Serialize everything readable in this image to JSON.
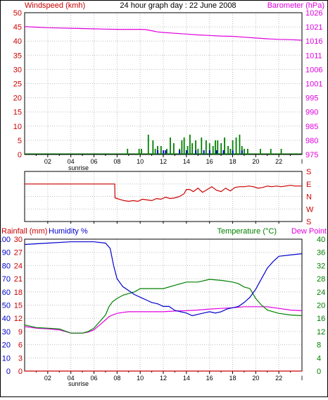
{
  "colors": {
    "red": "#cc0000",
    "magenta": "#e000e0",
    "green": "#008000",
    "blue": "#0000cc",
    "grid": "#c0c0c0",
    "axis": "#000000",
    "wind": "#0000cc",
    "gust": "#008000",
    "rain": "#cc0000"
  },
  "chart_data": [
    {
      "id": "wind-baro",
      "type": "bar+line",
      "title": "24 hour graph day : 22 June 2008",
      "left_label": "Windspeed (kmh)",
      "right_label": "Barometer (hPa)",
      "left_ticks": [
        "0",
        "5",
        "10",
        "15",
        "20",
        "25",
        "30",
        "35",
        "40",
        "45",
        "50"
      ],
      "right_ticks": [
        "975",
        "980",
        "985",
        "990",
        "995",
        "1001",
        "1006",
        "1011",
        "1016",
        "1021",
        "1026"
      ],
      "ylim_left": [
        0,
        50
      ],
      "ylim_right": [
        975,
        1026
      ],
      "x_ticks": [
        "02",
        "04",
        "06",
        "08",
        "10",
        "12",
        "14",
        "16",
        "18",
        "20",
        "22"
      ],
      "x_ticks_end_label": "I",
      "sunrise_label": "sunrise",
      "xlim_hours": [
        0,
        24
      ],
      "series": [
        {
          "name": "Barometer",
          "axis": "right",
          "x": [
            0,
            1,
            2,
            3,
            4,
            5,
            6,
            7,
            8,
            9,
            10,
            10.5,
            11,
            11.5,
            12,
            13,
            14,
            15,
            16,
            17,
            18,
            19,
            20,
            21,
            22,
            23,
            24
          ],
          "y": [
            1021,
            1020.8,
            1020.6,
            1020.5,
            1020.4,
            1020.3,
            1020.2,
            1020.1,
            1020,
            1020,
            1020,
            1019.9,
            1019.5,
            1019.1,
            1018.9,
            1018.6,
            1018.3,
            1018,
            1017.8,
            1017.6,
            1017.5,
            1017.2,
            1016.9,
            1016.6,
            1016.4,
            1016.3,
            1016.1
          ]
        },
        {
          "name": "Wind",
          "axis": "left",
          "x": [
            11.5,
            12,
            12.2,
            13.4,
            14,
            14.8,
            15.5,
            16,
            16.6,
            17.2,
            18,
            18.8
          ],
          "y": [
            1,
            1,
            1,
            1,
            1,
            1,
            1,
            1,
            1,
            1,
            1,
            1
          ]
        },
        {
          "name": "Gust",
          "axis": "left",
          "x": [
            8.9,
            9.9,
            10.1,
            10.7,
            11.1,
            11.3,
            11.5,
            11.8,
            12.3,
            12.6,
            12.9,
            13.4,
            13.6,
            13.8,
            14.1,
            14.3,
            14.5,
            14.8,
            15.0,
            15.3,
            15.7,
            16.0,
            16.3,
            16.5,
            16.7,
            17.0,
            17.3,
            17.6,
            17.8,
            18.0,
            18.3,
            18.6,
            18.8,
            19.0,
            19.3,
            20.4,
            21.3,
            22.2
          ],
          "y": [
            2,
            2,
            2,
            7,
            5,
            2,
            3,
            3,
            2,
            6,
            4,
            2,
            5,
            6,
            3,
            7,
            4,
            5,
            2,
            6,
            5,
            4,
            3,
            5,
            5,
            4,
            6,
            3,
            2,
            5,
            6,
            7,
            3,
            2,
            2,
            2,
            2,
            2
          ]
        }
      ]
    },
    {
      "id": "wind-dir",
      "type": "line",
      "right_labels": [
        "S",
        "E",
        "N",
        "W",
        "S"
      ],
      "ylim": [
        0,
        360
      ],
      "series": [
        {
          "name": "Wind direction",
          "x": [
            0,
            7.8,
            7.82,
            8.2,
            8.6,
            9.0,
            9.4,
            9.8,
            10.2,
            10.6,
            11.0,
            11.4,
            11.8,
            12.2,
            12.6,
            13.0,
            13.4,
            13.8,
            14.0,
            14.3,
            14.6,
            15.0,
            15.4,
            15.8,
            16.2,
            16.6,
            17.0,
            17.4,
            17.8,
            18.2,
            18.6,
            19.0,
            19.4,
            19.8,
            20.2,
            20.6,
            21.0,
            21.4,
            21.8,
            22.2,
            22.6,
            23.0,
            23.4,
            24
          ],
          "y": [
            270,
            270,
            170,
            160,
            150,
            145,
            150,
            145,
            160,
            155,
            150,
            165,
            160,
            175,
            165,
            170,
            180,
            200,
            230,
            230,
            215,
            240,
            210,
            230,
            250,
            225,
            215,
            240,
            220,
            245,
            250,
            250,
            255,
            250,
            240,
            245,
            255,
            250,
            255,
            250,
            255,
            260,
            255,
            255
          ]
        }
      ]
    },
    {
      "id": "temp-hum",
      "type": "line",
      "left_label_1": "Rainfall (mm)",
      "left_label_2": "Humidity %",
      "right_label_1": "Temperature (°C)",
      "right_label_2": "Dew Point",
      "humidity_ticks": [
        "0",
        "10",
        "20",
        "30",
        "40",
        "50",
        "60",
        "70",
        "80",
        "90",
        "100"
      ],
      "rain_ticks": [
        "0",
        "3",
        "6",
        "9",
        "12",
        "15",
        "18",
        "21",
        "24",
        "27",
        "30"
      ],
      "temp_ticks": [
        "0",
        "4",
        "8",
        "12",
        "16",
        "20",
        "24",
        "28",
        "32",
        "36",
        "40"
      ],
      "ylim_humidity": [
        0,
        100
      ],
      "ylim_rain": [
        0,
        30
      ],
      "ylim_temp": [
        0,
        40
      ],
      "x_ticks": [
        "02",
        "04",
        "06",
        "08",
        "10",
        "12",
        "14",
        "16",
        "18",
        "20",
        "22"
      ],
      "x_ticks_end_label": "I",
      "sunrise_label": "sunrise",
      "series": [
        {
          "name": "Humidity",
          "axis": "humidity",
          "x": [
            0,
            2,
            4,
            6,
            7,
            7.4,
            7.7,
            8.0,
            8.5,
            9,
            9.5,
            10,
            10.5,
            11,
            11.5,
            12,
            12.5,
            13,
            13.5,
            14,
            14.5,
            15,
            15.5,
            16,
            16.5,
            17,
            17.5,
            18,
            18.5,
            19,
            19.5,
            20,
            20.5,
            21,
            21.5,
            22,
            23,
            24
          ],
          "y": [
            96,
            97,
            98,
            98,
            97,
            93,
            80,
            70,
            64,
            61,
            58,
            56,
            54,
            52,
            51,
            49,
            49,
            46,
            45,
            44,
            42,
            43,
            44,
            45,
            44,
            45,
            47,
            48,
            49,
            52,
            56,
            62,
            70,
            78,
            83,
            87,
            88,
            89
          ]
        },
        {
          "name": "Temperature",
          "axis": "temp",
          "x": [
            0,
            1,
            2,
            3,
            4,
            5,
            5.5,
            6,
            6.5,
            7,
            7.3,
            7.6,
            8,
            8.5,
            9,
            9.5,
            10,
            11,
            12,
            13,
            14,
            15,
            16,
            17,
            18,
            18.5,
            19,
            19.5,
            20,
            20.5,
            21,
            22,
            23,
            24
          ],
          "y": [
            14,
            13.2,
            13,
            12.8,
            11.5,
            11.5,
            12,
            13,
            15,
            17,
            19.5,
            21,
            22,
            23,
            23.5,
            24,
            25,
            25,
            25,
            26,
            27,
            27,
            27.8,
            27.5,
            27,
            26.5,
            25.5,
            25,
            22,
            20,
            18.5,
            17.5,
            17,
            16.8
          ]
        },
        {
          "name": "Dew Point",
          "axis": "temp",
          "x": [
            0,
            1,
            2,
            3,
            4,
            5,
            5.5,
            6,
            6.5,
            7,
            7.3,
            7.6,
            8,
            8.5,
            9,
            10,
            11,
            12,
            13,
            14,
            15,
            16,
            17,
            18,
            19,
            20,
            21,
            22,
            23,
            24
          ],
          "y": [
            13.5,
            13,
            12.8,
            12.5,
            11.5,
            11.5,
            11.8,
            12.5,
            14,
            15.5,
            16.5,
            17,
            17.5,
            17.8,
            18,
            18,
            18,
            18,
            18.2,
            18.3,
            18.5,
            18.8,
            19,
            19.2,
            19.5,
            19.5,
            19.5,
            19,
            18.5,
            18.3
          ]
        },
        {
          "name": "Rainfall",
          "axis": "rain",
          "x": [
            0,
            24
          ],
          "y": [
            0,
            0
          ]
        }
      ]
    }
  ]
}
